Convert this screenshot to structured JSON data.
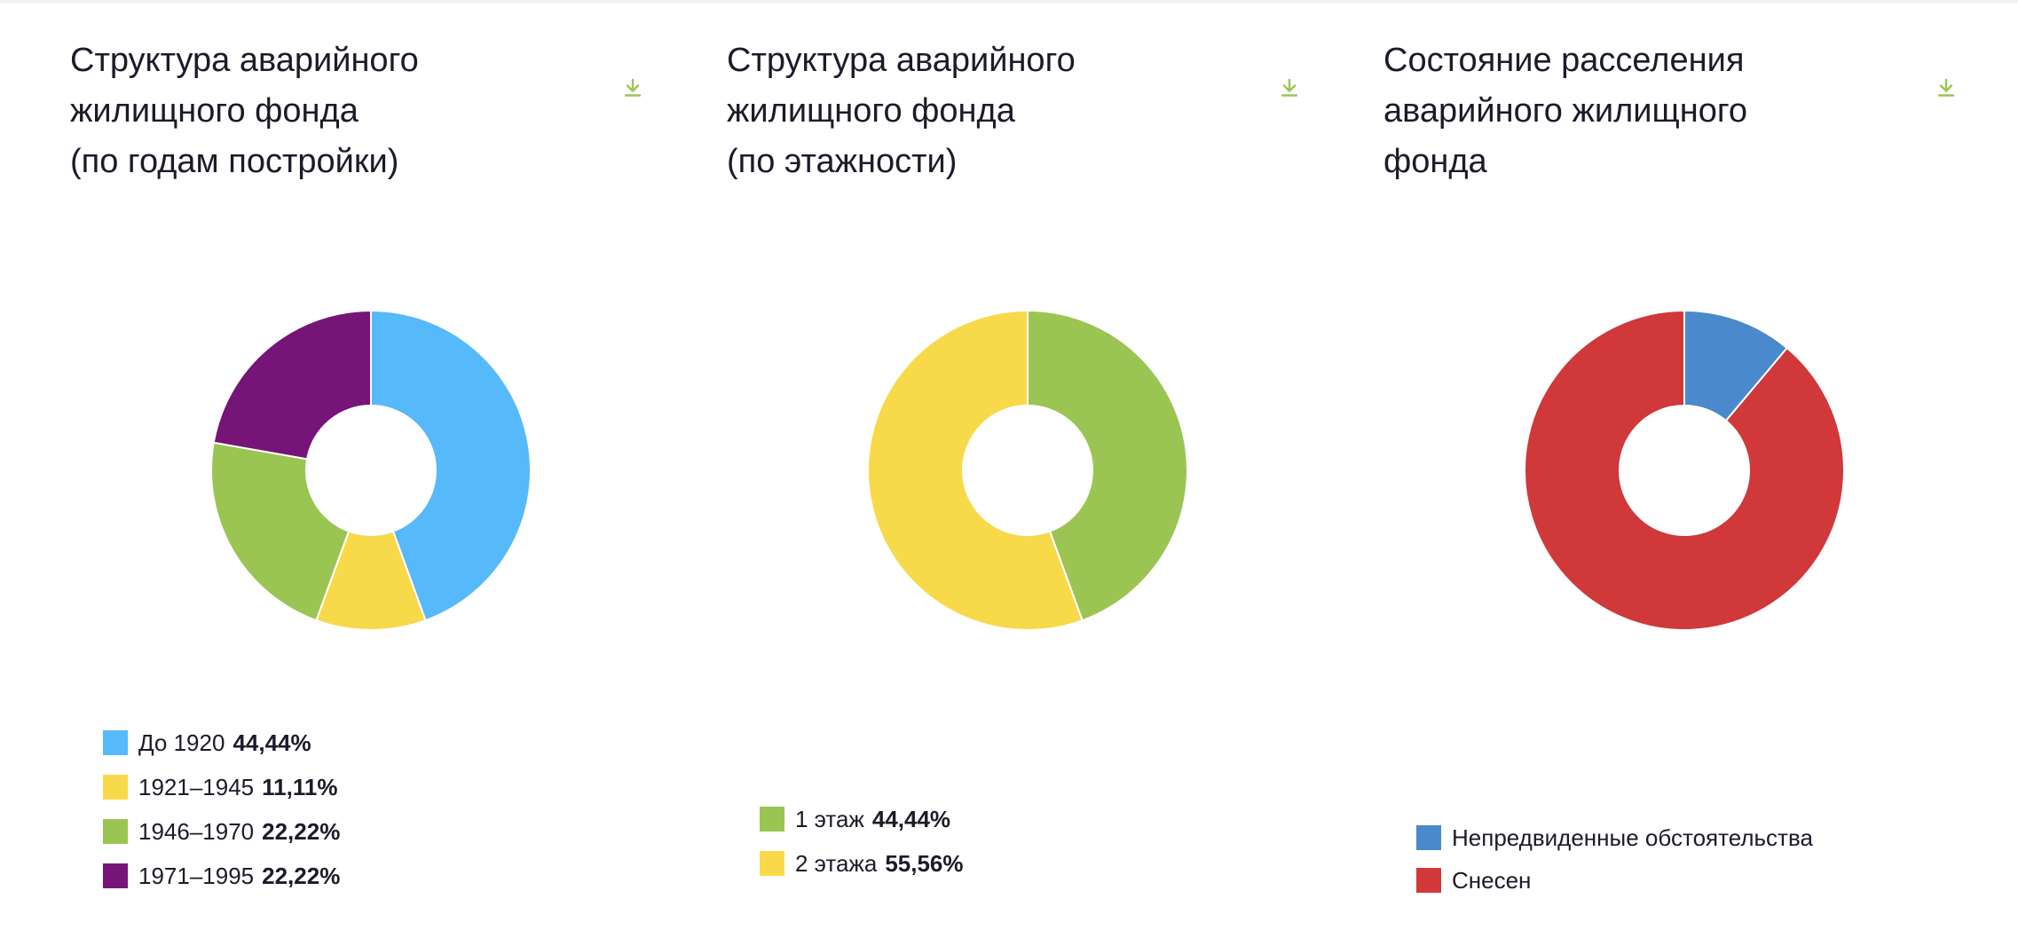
{
  "charts": [
    {
      "title": "Структура аварийного\nжилищного фонда\n(по годам постройки)",
      "download_icon": "download-arrow-icon",
      "legend_top": 812,
      "chart_data": {
        "type": "pie",
        "donut": true,
        "categories": [
          "До 1920",
          "1921–1945",
          "1946–1970",
          "1971–1995"
        ],
        "values": [
          44.44,
          11.11,
          22.22,
          22.22
        ],
        "value_labels": [
          "44,44%",
          "11,11%",
          "22,22%",
          "22,22%"
        ],
        "colors": [
          "#56b9f9",
          "#f8d94a",
          "#9bc553",
          "#761477"
        ],
        "title": "Структура аварийного жилищного фонда (по годам постройки)",
        "legend": "bottom-left"
      }
    },
    {
      "title": "Структура аварийного\nжилищного фонда\n(по этажности)",
      "download_icon": "download-arrow-icon",
      "legend_top": 898,
      "chart_data": {
        "type": "pie",
        "donut": true,
        "categories": [
          "1 этаж",
          "2 этажа"
        ],
        "values": [
          44.44,
          55.56
        ],
        "value_labels": [
          "44,44%",
          "55,56%"
        ],
        "colors": [
          "#9bc553",
          "#f8d94a"
        ],
        "title": "Структура аварийного жилищного фонда (по этажности)",
        "legend": "bottom-left"
      }
    },
    {
      "title": "Состояние расселения\nаварийного жилищного\nфонда",
      "download_icon": "download-arrow-icon",
      "legend_top": 920,
      "chart_data": {
        "type": "pie",
        "donut": true,
        "categories": [
          "Непредвиденные обстоятельства",
          "Снесен"
        ],
        "values": [
          11.11,
          88.89
        ],
        "value_labels": [
          "",
          ""
        ],
        "colors": [
          "#4a89cb",
          "#d0383a"
        ],
        "title": "Состояние расселения аварийного жилищного фонда",
        "legend": "bottom-left"
      }
    }
  ],
  "accent_color": "#9bc553"
}
